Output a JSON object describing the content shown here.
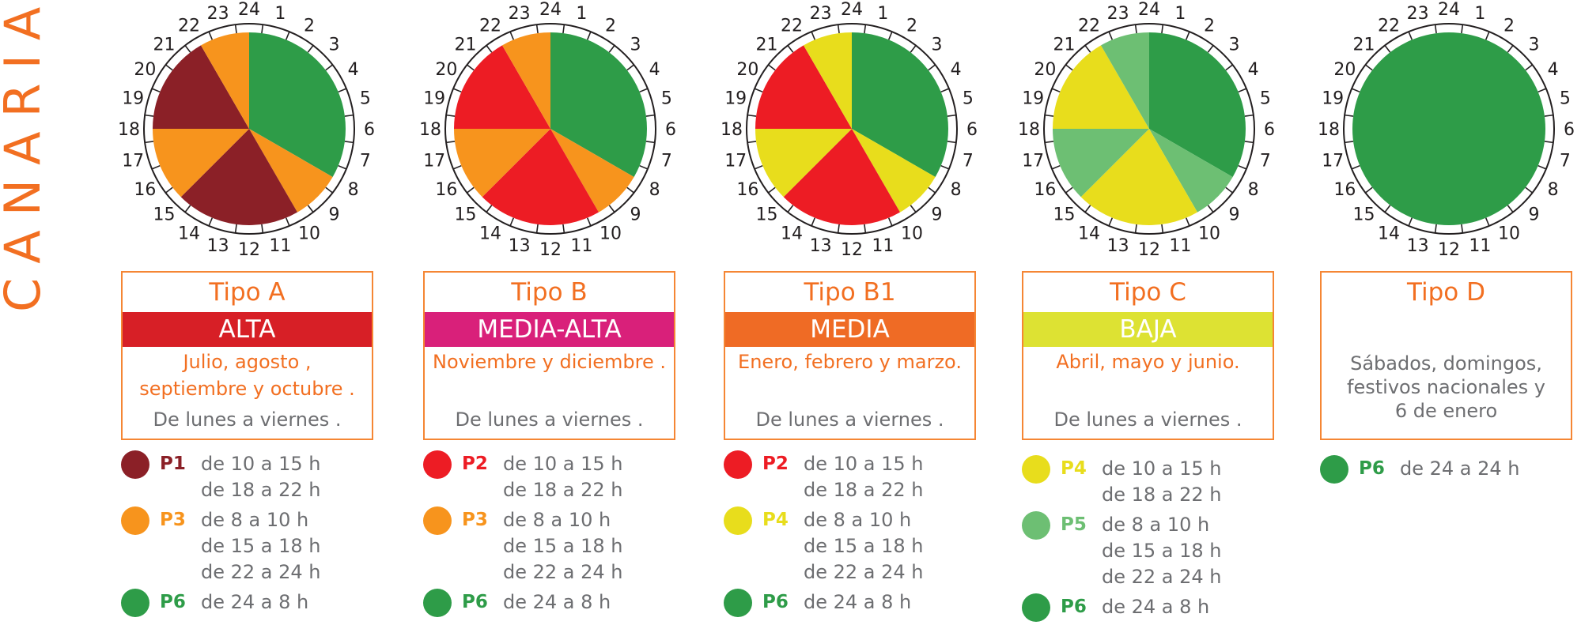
{
  "region": "CANARIAS",
  "clock_hours": [
    "1",
    "2",
    "3",
    "4",
    "5",
    "6",
    "7",
    "8",
    "9",
    "10",
    "11",
    "12",
    "13",
    "14",
    "15",
    "16",
    "17",
    "18",
    "19",
    "20",
    "21",
    "22",
    "23",
    "24"
  ],
  "colors": {
    "P1": "#8b2027",
    "P2": "#ed1c24",
    "P3": "#f7941d",
    "P4": "#e8dd1c",
    "P5": "#6dbf73",
    "P6": "#2e9c48",
    "accent": "#f26f21"
  },
  "tariffs": [
    {
      "tipo": "Tipo A",
      "nivel": "ALTA",
      "nivel_color": "#d71f26",
      "months": [
        "Julio, agosto ,",
        "septiembre y octubre ."
      ],
      "days": "De lunes a viernes .",
      "pie": [
        {
          "period": "P6",
          "from": 0,
          "to": 8
        },
        {
          "period": "P3",
          "from": 8,
          "to": 10
        },
        {
          "period": "P1",
          "from": 10,
          "to": 15
        },
        {
          "period": "P3",
          "from": 15,
          "to": 18
        },
        {
          "period": "P1",
          "from": 18,
          "to": 22
        },
        {
          "period": "P3",
          "from": 22,
          "to": 24
        }
      ],
      "legend": [
        {
          "period": "P1",
          "ranges": [
            "de 10 a 15 h",
            "de 18 a 22  h"
          ]
        },
        {
          "period": "P3",
          "ranges": [
            "de 8 a 10  h",
            "de 15 a 18 h",
            "de 22 a 24  h"
          ]
        },
        {
          "period": "P6",
          "ranges": [
            "de 24 a 8  h"
          ]
        }
      ]
    },
    {
      "tipo": "Tipo B",
      "nivel": "MEDIA-ALTA",
      "nivel_color": "#d9207a",
      "months": [
        "Noviembre y diciembre  ."
      ],
      "days": "De lunes a viernes  .",
      "pie": [
        {
          "period": "P6",
          "from": 0,
          "to": 8
        },
        {
          "period": "P3",
          "from": 8,
          "to": 10
        },
        {
          "period": "P2",
          "from": 10,
          "to": 15
        },
        {
          "period": "P3",
          "from": 15,
          "to": 18
        },
        {
          "period": "P2",
          "from": 18,
          "to": 22
        },
        {
          "period": "P3",
          "from": 22,
          "to": 24
        }
      ],
      "legend": [
        {
          "period": "P2",
          "ranges": [
            "de 10 a 15 h",
            "de 18 a 22  h"
          ]
        },
        {
          "period": "P3",
          "ranges": [
            "de 8 a 10 h",
            "de 15 a 18 h",
            "de 22 a 24  h"
          ]
        },
        {
          "period": "P6",
          "ranges": [
            "de 24 a 8 h"
          ]
        }
      ]
    },
    {
      "tipo": "Tipo B1",
      "nivel": "MEDIA",
      "nivel_color": "#ef6b25",
      "months": [
        "Enero, febrero y marzo."
      ],
      "days": "De lunes a viernes  .",
      "pie": [
        {
          "period": "P6",
          "from": 0,
          "to": 8
        },
        {
          "period": "P4",
          "from": 8,
          "to": 10
        },
        {
          "period": "P2",
          "from": 10,
          "to": 15
        },
        {
          "period": "P4",
          "from": 15,
          "to": 18
        },
        {
          "period": "P2",
          "from": 18,
          "to": 22
        },
        {
          "period": "P4",
          "from": 22,
          "to": 24
        }
      ],
      "legend": [
        {
          "period": "P2",
          "ranges": [
            "de 10 a 15 h",
            "de 18 a 22  h"
          ]
        },
        {
          "period": "P4",
          "ranges": [
            "de 8 a 10 h",
            "de 15 a 18 h",
            "de 22 a 24  h"
          ]
        },
        {
          "period": "P6",
          "ranges": [
            "de 24 a 8 h"
          ]
        }
      ]
    },
    {
      "tipo": "Tipo C",
      "nivel": "BAJA",
      "nivel_color": "#dde233",
      "months": [
        "Abril, mayo y junio."
      ],
      "days": "De lunes a viernes  .",
      "pie": [
        {
          "period": "P6",
          "from": 0,
          "to": 8
        },
        {
          "period": "P5",
          "from": 8,
          "to": 10
        },
        {
          "period": "P4",
          "from": 10,
          "to": 15
        },
        {
          "period": "P5",
          "from": 15,
          "to": 18
        },
        {
          "period": "P4",
          "from": 18,
          "to": 22
        },
        {
          "period": "P5",
          "from": 22,
          "to": 24
        }
      ],
      "legend": [
        {
          "period": "P4",
          "ranges": [
            "de 10 a 15 h",
            "de 18 a 22  h"
          ]
        },
        {
          "period": "P5",
          "ranges": [
            "de 8 a 10 h",
            "de 15 a 18 h",
            "de 22 a 24  h"
          ]
        },
        {
          "period": "P6",
          "ranges": [
            "de 24 a 8 h"
          ]
        }
      ]
    },
    {
      "tipo": "Tipo D",
      "nivel": "",
      "nivel_color": "",
      "months": [],
      "days": "Sábados, domingos, festivos nacionales y 6 de enero",
      "days_lines": [
        "Sábados, domingos,",
        "festivos nacionales y",
        "6 de enero"
      ],
      "pie": [
        {
          "period": "P6",
          "from": 0,
          "to": 24
        }
      ],
      "legend": [
        {
          "period": "P6",
          "ranges": [
            "de 24 a 24 h"
          ]
        }
      ]
    }
  ]
}
